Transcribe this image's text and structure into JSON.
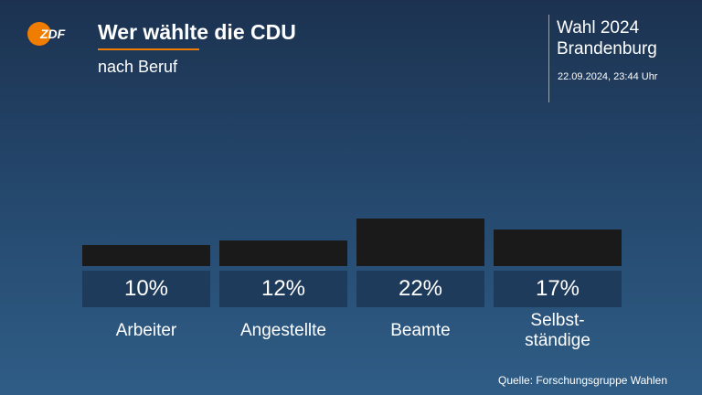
{
  "header": {
    "title": "Wer wählte die CDU",
    "subtitle": "nach Beruf",
    "logo_text": "ZDF"
  },
  "election": {
    "line1": "Wahl 2024",
    "line2": "Brandenburg",
    "timestamp": "22.09.2024, 23:44 Uhr"
  },
  "colors": {
    "bar": "#1a1a1a",
    "value_box": "#1e3b5b",
    "accent": "#f07c00"
  },
  "chart_data": {
    "type": "bar",
    "categories": [
      "Arbeiter",
      "Angestellte",
      "Beamte",
      "Selbst-\nständige"
    ],
    "values": [
      10,
      12,
      22,
      17
    ],
    "value_labels": [
      "10%",
      "12%",
      "22%",
      "17%"
    ],
    "title": "Wer wählte die CDU",
    "subtitle": "nach Beruf",
    "ylim": [
      0,
      100
    ],
    "grid": false,
    "legend": "none"
  },
  "footer": {
    "source": "Quelle: Forschungsgruppe Wahlen"
  }
}
